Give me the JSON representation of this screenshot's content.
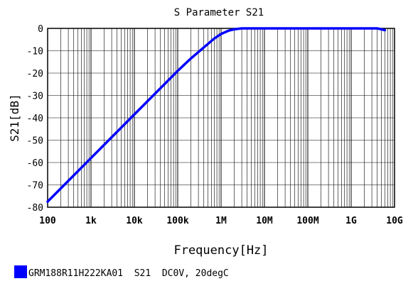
{
  "chart_data": {
    "type": "line",
    "title": "S Parameter S21",
    "xlabel": "Frequency[Hz]",
    "ylabel": "S21[dB]",
    "xscale": "log",
    "xlim": [
      100,
      10000000000
    ],
    "ylim": [
      -80,
      0
    ],
    "grid": true,
    "x_ticks": [
      {
        "value": 100,
        "label": "100"
      },
      {
        "value": 1000,
        "label": "1k"
      },
      {
        "value": 10000,
        "label": "10k"
      },
      {
        "value": 100000,
        "label": "100k"
      },
      {
        "value": 1000000,
        "label": "1M"
      },
      {
        "value": 10000000,
        "label": "10M"
      },
      {
        "value": 100000000,
        "label": "100M"
      },
      {
        "value": 1000000000,
        "label": "1G"
      },
      {
        "value": 10000000000,
        "label": "10G"
      }
    ],
    "y_ticks": [
      {
        "value": 0,
        "label": "0"
      },
      {
        "value": -10,
        "label": "-10"
      },
      {
        "value": -20,
        "label": "-20"
      },
      {
        "value": -30,
        "label": "-30"
      },
      {
        "value": -40,
        "label": "-40"
      },
      {
        "value": -50,
        "label": "-50"
      },
      {
        "value": -60,
        "label": "-60"
      },
      {
        "value": -70,
        "label": "-70"
      },
      {
        "value": -80,
        "label": "-80"
      }
    ],
    "legend_position": "bottom-left",
    "series": [
      {
        "name": "GRM188R11H222KA01  S21  DC0V, 20degC",
        "color": "#0000ff",
        "points": [
          [
            100,
            -77.5
          ],
          [
            1000,
            -58
          ],
          [
            10000,
            -38.5
          ],
          [
            100000,
            -19
          ],
          [
            200000,
            -13.5
          ],
          [
            400000,
            -8.5
          ],
          [
            700000,
            -4.5
          ],
          [
            1000000,
            -2.5
          ],
          [
            1500000,
            -1
          ],
          [
            2000000,
            -0.4
          ],
          [
            3000000,
            0
          ],
          [
            10000000,
            0
          ],
          [
            100000000,
            0
          ],
          [
            1000000000,
            0
          ],
          [
            4000000000,
            0
          ],
          [
            5000000000,
            -0.4
          ],
          [
            6000000000,
            -0.8
          ]
        ]
      }
    ]
  }
}
